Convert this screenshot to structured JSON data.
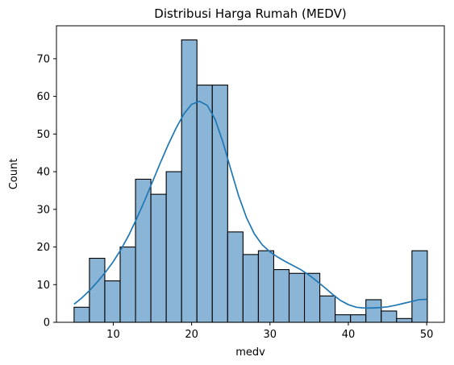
{
  "chart_data": {
    "type": "bar",
    "title": "Distribusi Harga Rumah (MEDV)",
    "xlabel": "medv",
    "ylabel": "Count",
    "xlim": [
      2.75,
      52.25
    ],
    "ylim": [
      0,
      78.75
    ],
    "xticks": [
      10,
      20,
      30,
      40,
      50
    ],
    "yticks": [
      0,
      10,
      20,
      30,
      40,
      50,
      60,
      70
    ],
    "bin_edges": [
      5.0,
      6.96,
      8.92,
      10.88,
      12.84,
      14.8,
      16.76,
      18.72,
      20.68,
      22.64,
      24.6,
      26.56,
      28.52,
      30.48,
      32.44,
      34.4,
      36.36,
      38.32,
      40.28,
      42.24,
      44.2,
      46.16,
      48.12,
      50.08
    ],
    "counts": [
      4,
      17,
      11,
      20,
      38,
      34,
      40,
      75,
      63,
      63,
      24,
      18,
      19,
      14,
      13,
      13,
      7,
      2,
      2,
      6,
      3,
      1,
      19
    ],
    "kde": {
      "x": [
        5,
        6,
        7,
        8,
        9,
        10,
        11,
        12,
        13,
        14,
        15,
        16,
        17,
        18,
        19,
        20,
        21,
        22,
        23,
        24,
        25,
        26,
        27,
        28,
        29,
        30,
        31,
        32,
        33,
        34,
        35,
        36,
        37,
        38,
        39,
        40,
        41,
        42,
        43,
        44,
        45,
        46,
        47,
        48,
        49,
        50
      ],
      "y": [
        4.8,
        6.5,
        8.5,
        10.8,
        13.3,
        16.1,
        19.4,
        23.2,
        27.6,
        32.3,
        37.3,
        42.3,
        47.1,
        51.5,
        55.3,
        57.9,
        58.7,
        57.6,
        53.9,
        47.8,
        40.6,
        33.6,
        27.8,
        23.5,
        20.6,
        18.7,
        17.3,
        16.1,
        15.0,
        13.9,
        12.5,
        10.9,
        9.2,
        7.4,
        5.8,
        4.7,
        4.0,
        3.8,
        3.8,
        3.9,
        4.1,
        4.5,
        5.0,
        5.5,
        6.0,
        6.1
      ]
    },
    "colors": {
      "bar_fill": "#8ab5d6",
      "bar_edge": "#000000",
      "kde_line": "#1f77b4"
    },
    "grid": false,
    "legend": "none"
  }
}
